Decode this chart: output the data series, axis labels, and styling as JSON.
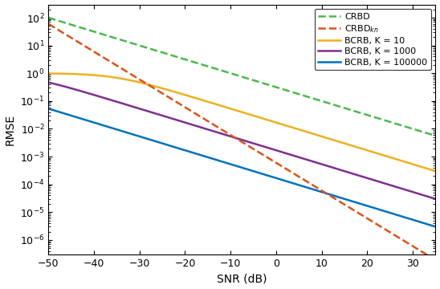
{
  "snr_min": -50,
  "snr_max": 35,
  "snr_step": 0.1,
  "ylim_low": 3e-07,
  "ylim_high": 300,
  "xlabel": "SNR (dB)",
  "ylabel": "RMSE",
  "legend_entries": [
    "CRBD",
    "CRBD$_{kn}$",
    "BCRB, K = 10",
    "BCRB, K = 1000",
    "BCRB, K = 100000"
  ],
  "colors": [
    "#4db84e",
    "#d95319",
    "#edb120",
    "#7e2f8e",
    "#0072bd"
  ],
  "linestyles": [
    "--",
    "--",
    "-",
    "-",
    "-"
  ],
  "linewidths": [
    1.8,
    1.8,
    1.8,
    1.8,
    1.8
  ],
  "alpha_bcrb": 1.0,
  "sigma2_prior": 1.0,
  "crbd_factor": 10.0,
  "crbd_kn_C": 0.0005,
  "crbd_kn_power": 2.0,
  "K_values": [
    10,
    1000,
    100000
  ],
  "background_color": "#ffffff",
  "tick_direction": "in",
  "xticks": [
    -50,
    -40,
    -30,
    -20,
    -10,
    0,
    10,
    20,
    30
  ]
}
